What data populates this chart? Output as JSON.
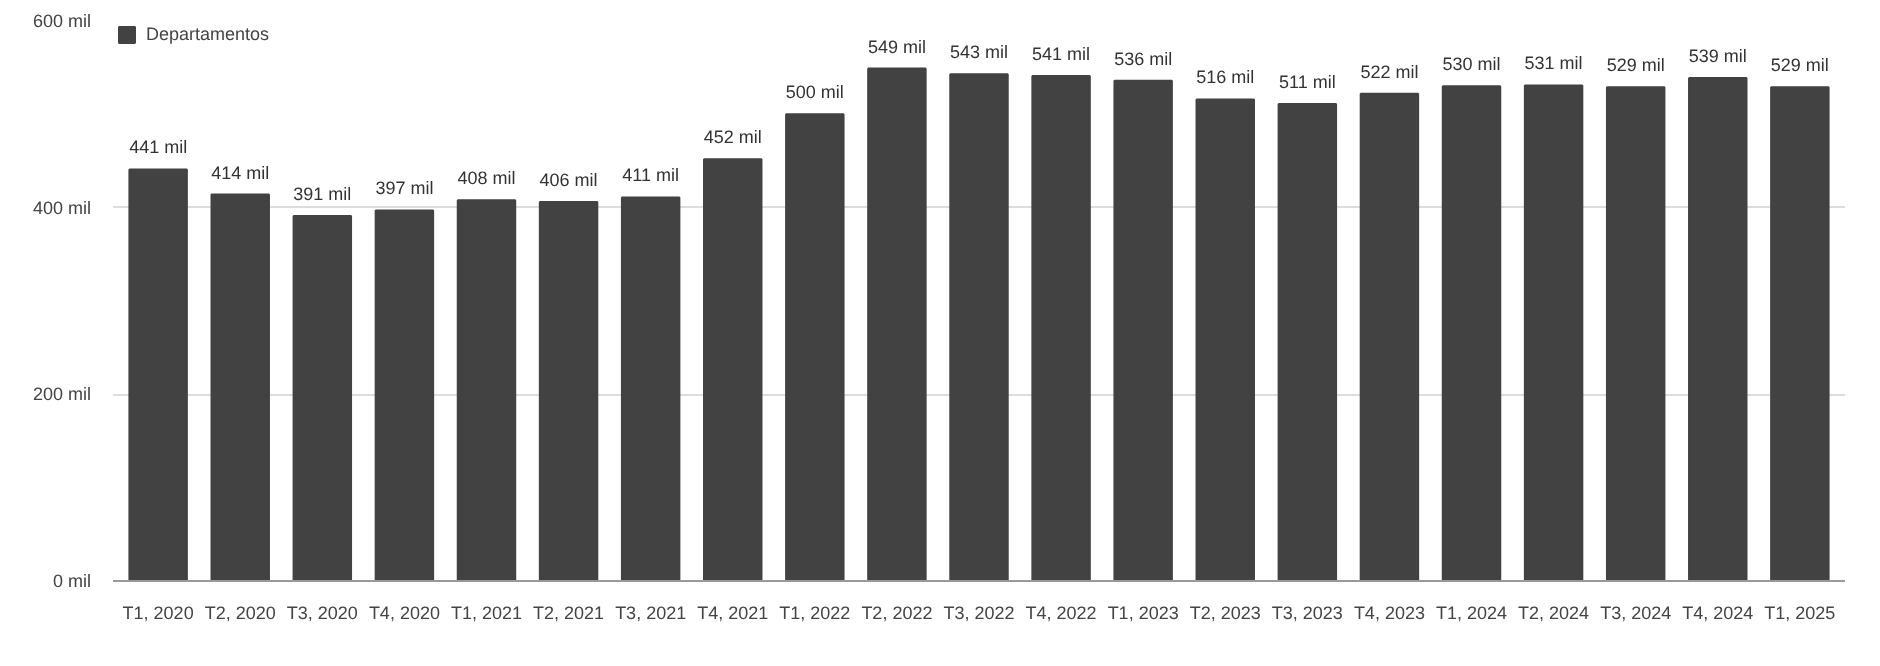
{
  "chart_data": {
    "type": "bar",
    "categories": [
      "T1, 2020",
      "T2, 2020",
      "T3, 2020",
      "T4, 2020",
      "T1, 2021",
      "T2, 2021",
      "T3, 2021",
      "T4, 2021",
      "T1, 2022",
      "T2, 2022",
      "T3, 2022",
      "T4, 2022",
      "T1, 2023",
      "T2, 2023",
      "T3, 2023",
      "T4, 2023",
      "T1, 2024",
      "T2, 2024",
      "T3, 2024",
      "T4, 2024",
      "T1, 2025"
    ],
    "series": [
      {
        "name": "Departamentos",
        "color": "#424242",
        "values": [
          441,
          414,
          391,
          397,
          408,
          406,
          411,
          452,
          500,
          549,
          543,
          541,
          536,
          516,
          511,
          522,
          530,
          531,
          529,
          539,
          529
        ],
        "value_labels": [
          "441 mil",
          "414 mil",
          "391 mil",
          "397 mil",
          "408 mil",
          "406 mil",
          "411 mil",
          "452 mil",
          "500 mil",
          "549 mil",
          "543 mil",
          "541 mil",
          "536 mil",
          "516 mil",
          "511 mil",
          "522 mil",
          "530 mil",
          "531 mil",
          "529 mil",
          "539 mil",
          "529 mil"
        ]
      }
    ],
    "ylim": [
      0,
      600
    ],
    "yticks": [
      {
        "value": 0,
        "label": "0 mil"
      },
      {
        "value": 200,
        "label": "200 mil"
      },
      {
        "value": 400,
        "label": "400 mil"
      },
      {
        "value": 600,
        "label": "600 mil"
      }
    ],
    "grid": "y",
    "legend": "top left"
  }
}
